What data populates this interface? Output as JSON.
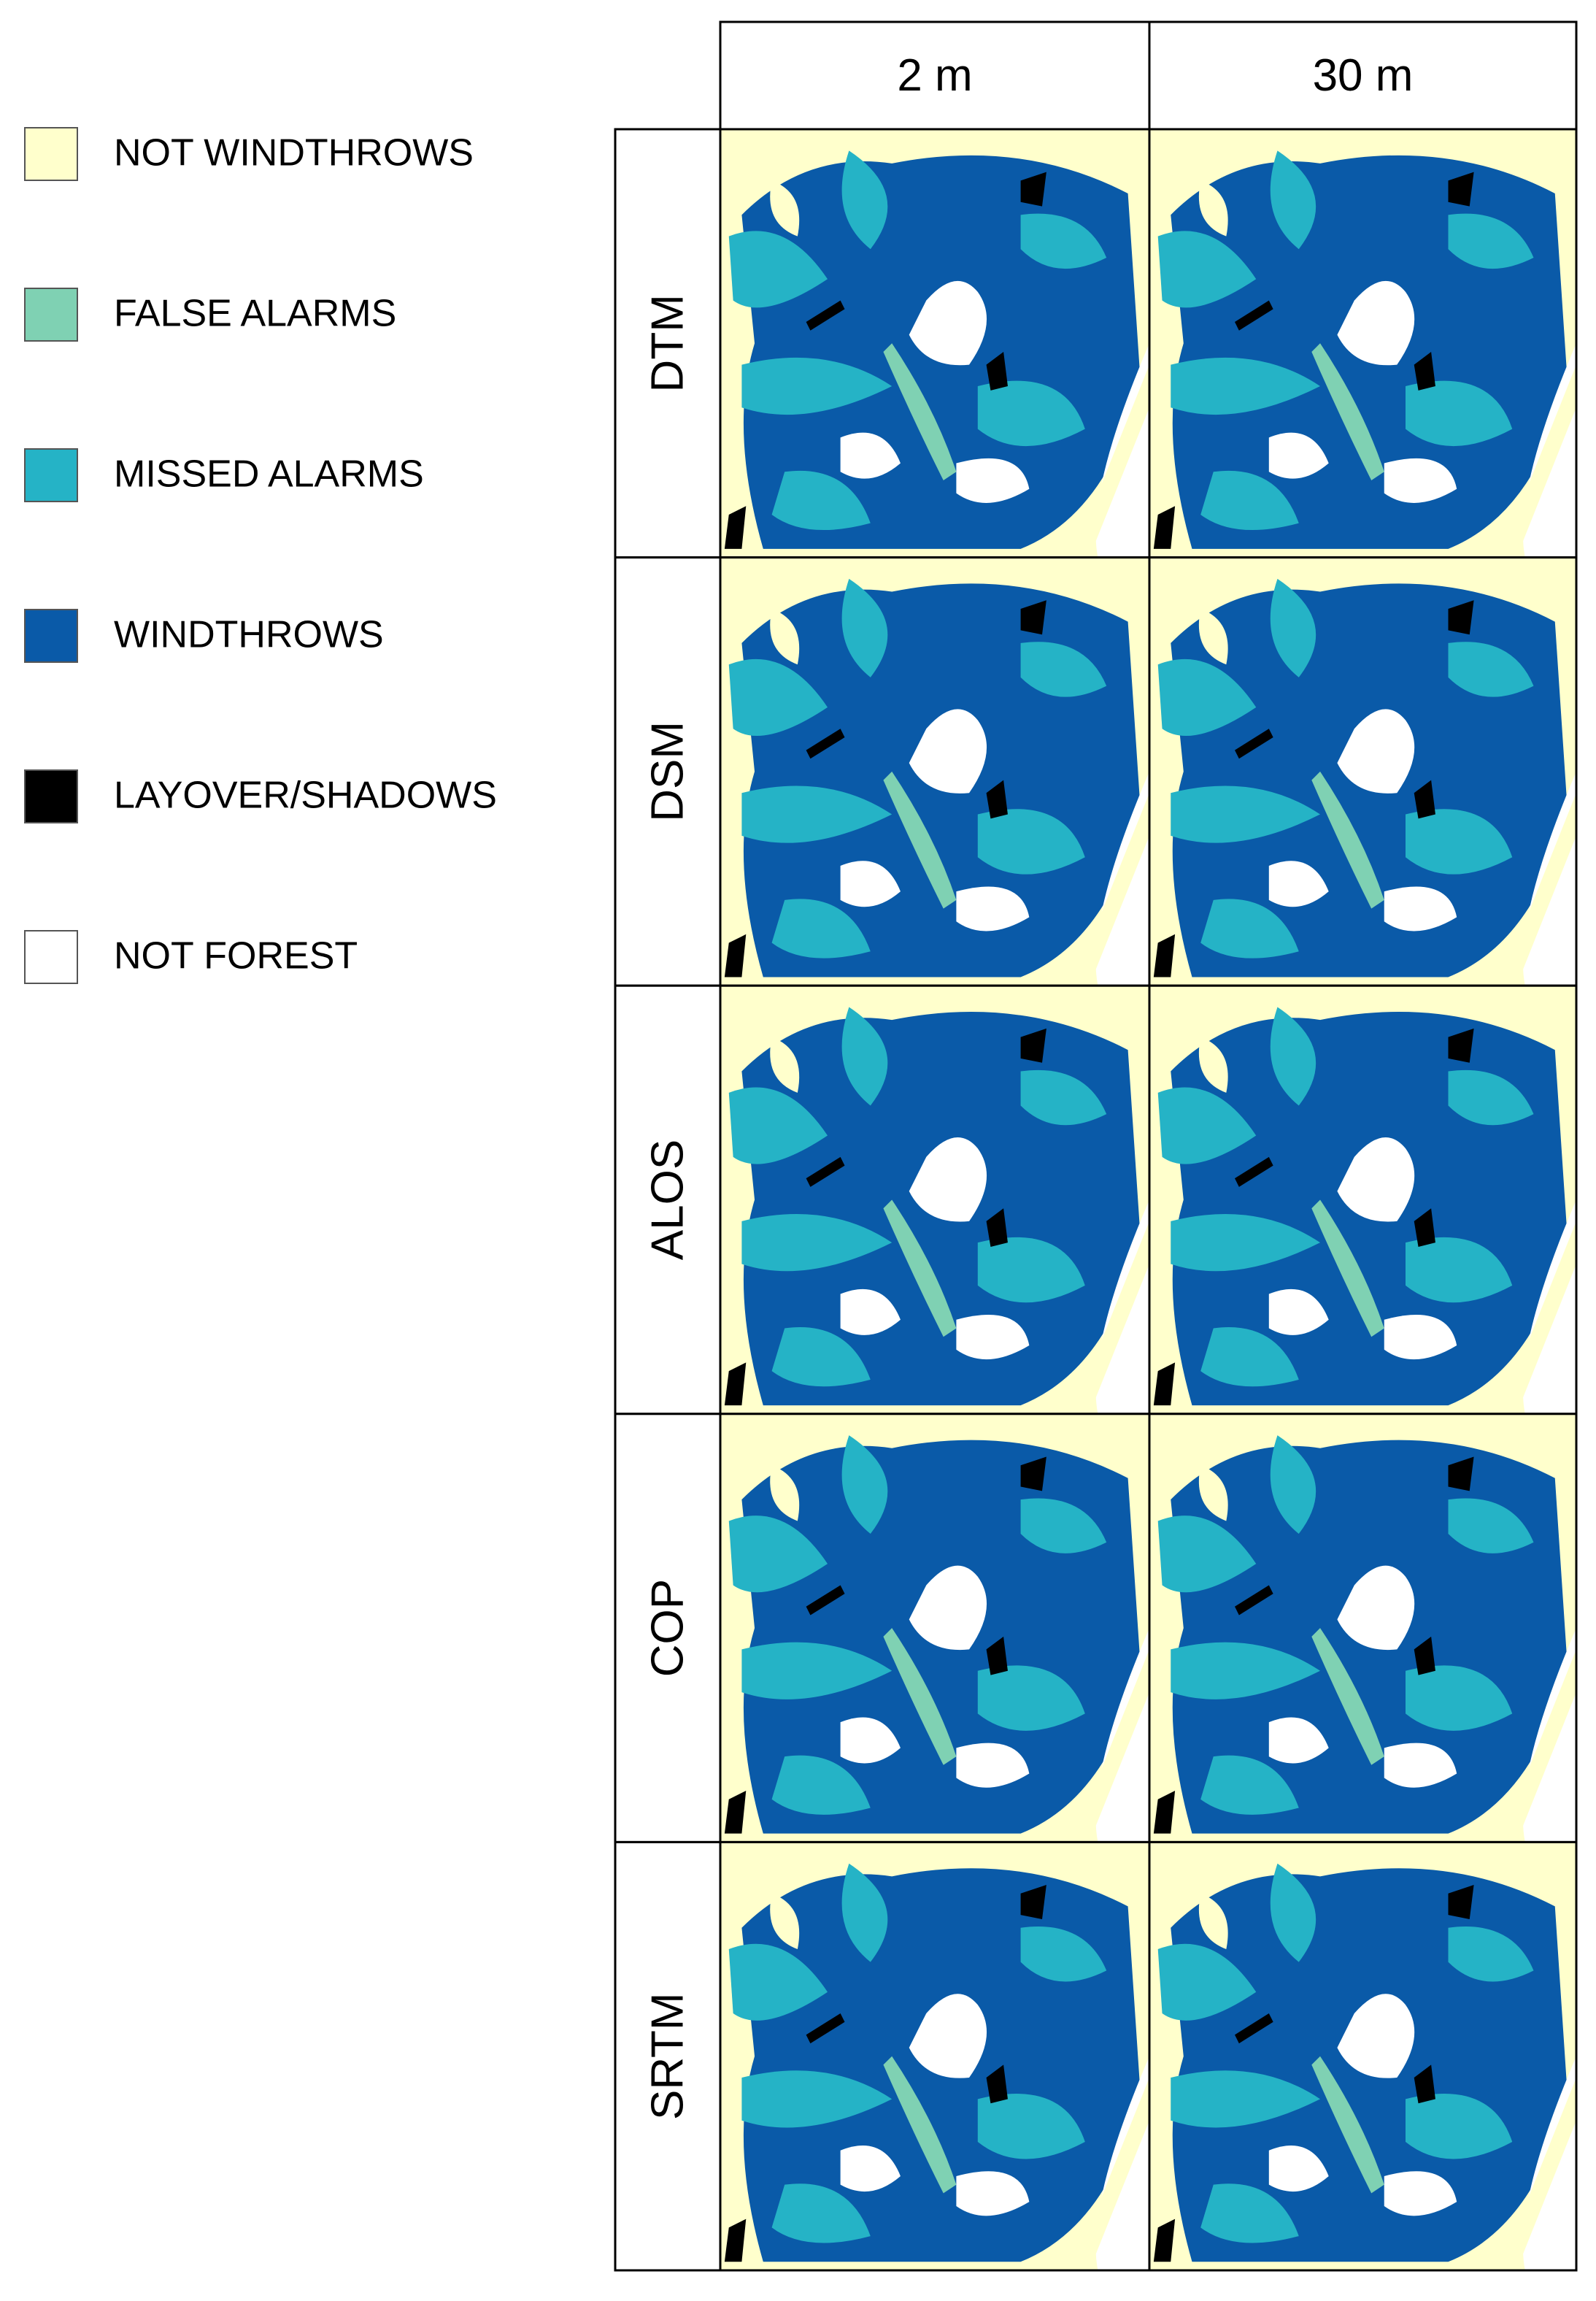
{
  "legend": [
    {
      "label": "NOT WINDTHROWS",
      "color": "#ffffcc"
    },
    {
      "label": "FALSE ALARMS",
      "color": "#7fd1b3"
    },
    {
      "label": "MISSED ALARMS",
      "color": "#25b3c6"
    },
    {
      "label": "WINDTHROWS",
      "color": "#0a5aa8"
    },
    {
      "label": "LAYOVER/SHADOWS",
      "color": "#000000"
    },
    {
      "label": "NOT FOREST",
      "color": "#ffffff"
    }
  ],
  "columns": [
    "2 m",
    "30 m"
  ],
  "rows": [
    "DTM",
    "DSM",
    "ALOS",
    "COP",
    "SRTM"
  ]
}
